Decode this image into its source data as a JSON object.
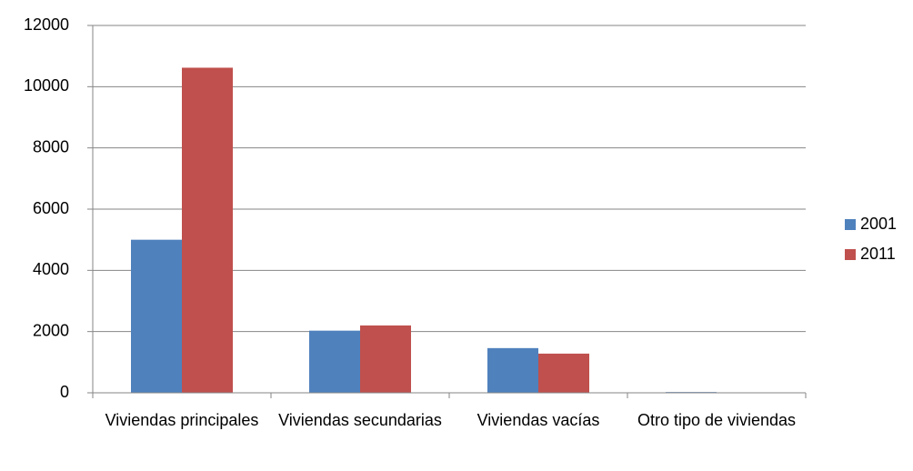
{
  "chart_data": {
    "type": "bar",
    "categories": [
      "Viviendas principales",
      "Viviendas secundarias",
      "Viviendas vacías",
      "Otro tipo de viviendas"
    ],
    "series": [
      {
        "name": "2001",
        "color": "#4f81bd",
        "values": [
          5000,
          2030,
          1460,
          25
        ]
      },
      {
        "name": "2011",
        "color": "#c0504d",
        "values": [
          10620,
          2200,
          1280,
          5
        ]
      }
    ],
    "ylim": [
      0,
      12000
    ],
    "yticks": [
      0,
      2000,
      4000,
      6000,
      8000,
      10000,
      12000
    ],
    "grid": true,
    "legend": "right"
  }
}
